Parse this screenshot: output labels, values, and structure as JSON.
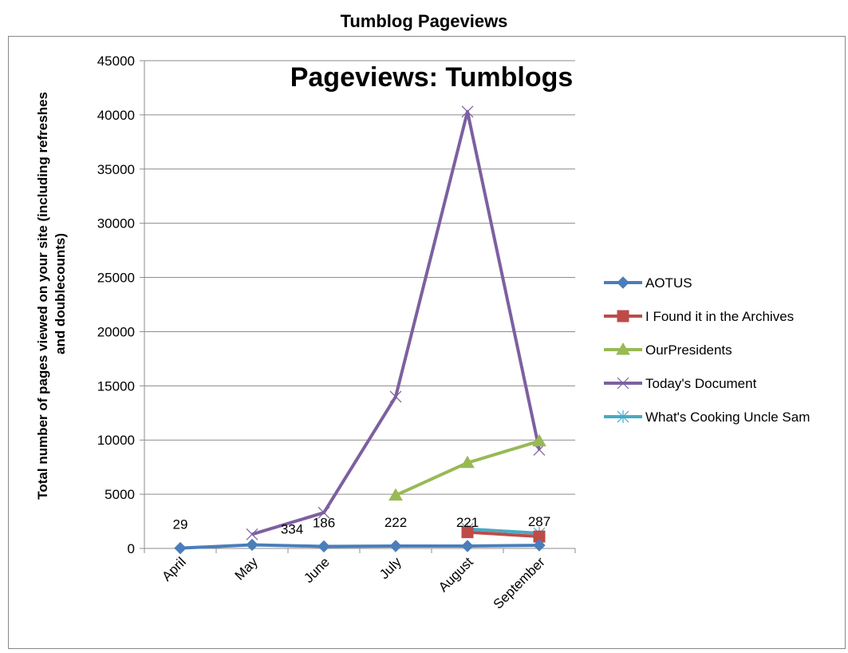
{
  "chart_data": {
    "type": "line",
    "title": "Tumblog Pageviews",
    "inner_title": "Pageviews: Tumblogs",
    "xlabel": "",
    "ylabel": "Total number of pages viewed on your site (including refreshes and doublecounts)",
    "ylabel_lines": [
      "Total number of pages viewed on your site (including refreshes",
      "and doublecounts)"
    ],
    "categories": [
      "April",
      "May",
      "June",
      "July",
      "August",
      "September"
    ],
    "ylim": [
      0,
      45000
    ],
    "yticks": [
      0,
      5000,
      10000,
      15000,
      20000,
      25000,
      30000,
      35000,
      40000,
      45000
    ],
    "grid": true,
    "legend_position": "right",
    "series": [
      {
        "name": "AOTUS",
        "color": "#4a7ebb",
        "marker": "diamond",
        "values": [
          29,
          334,
          186,
          222,
          221,
          287
        ],
        "data_labels": [
          "29",
          "334",
          "186",
          "222",
          "221",
          "287"
        ]
      },
      {
        "name": "I Found it in the Archives",
        "color": "#be4b48",
        "marker": "square",
        "values": [
          null,
          null,
          null,
          null,
          1500,
          1100
        ]
      },
      {
        "name": "OurPresidents",
        "color": "#98b954",
        "marker": "triangle",
        "values": [
          null,
          null,
          null,
          4900,
          7900,
          9900
        ]
      },
      {
        "name": "Today's Document",
        "color": "#7d60a0",
        "marker": "x",
        "values": [
          null,
          1300,
          3300,
          14000,
          40300,
          9100
        ]
      },
      {
        "name": "What's Cooking Uncle Sam",
        "color": "#46aac5",
        "marker": "star",
        "values": [
          null,
          null,
          null,
          null,
          1800,
          1400
        ]
      }
    ]
  }
}
